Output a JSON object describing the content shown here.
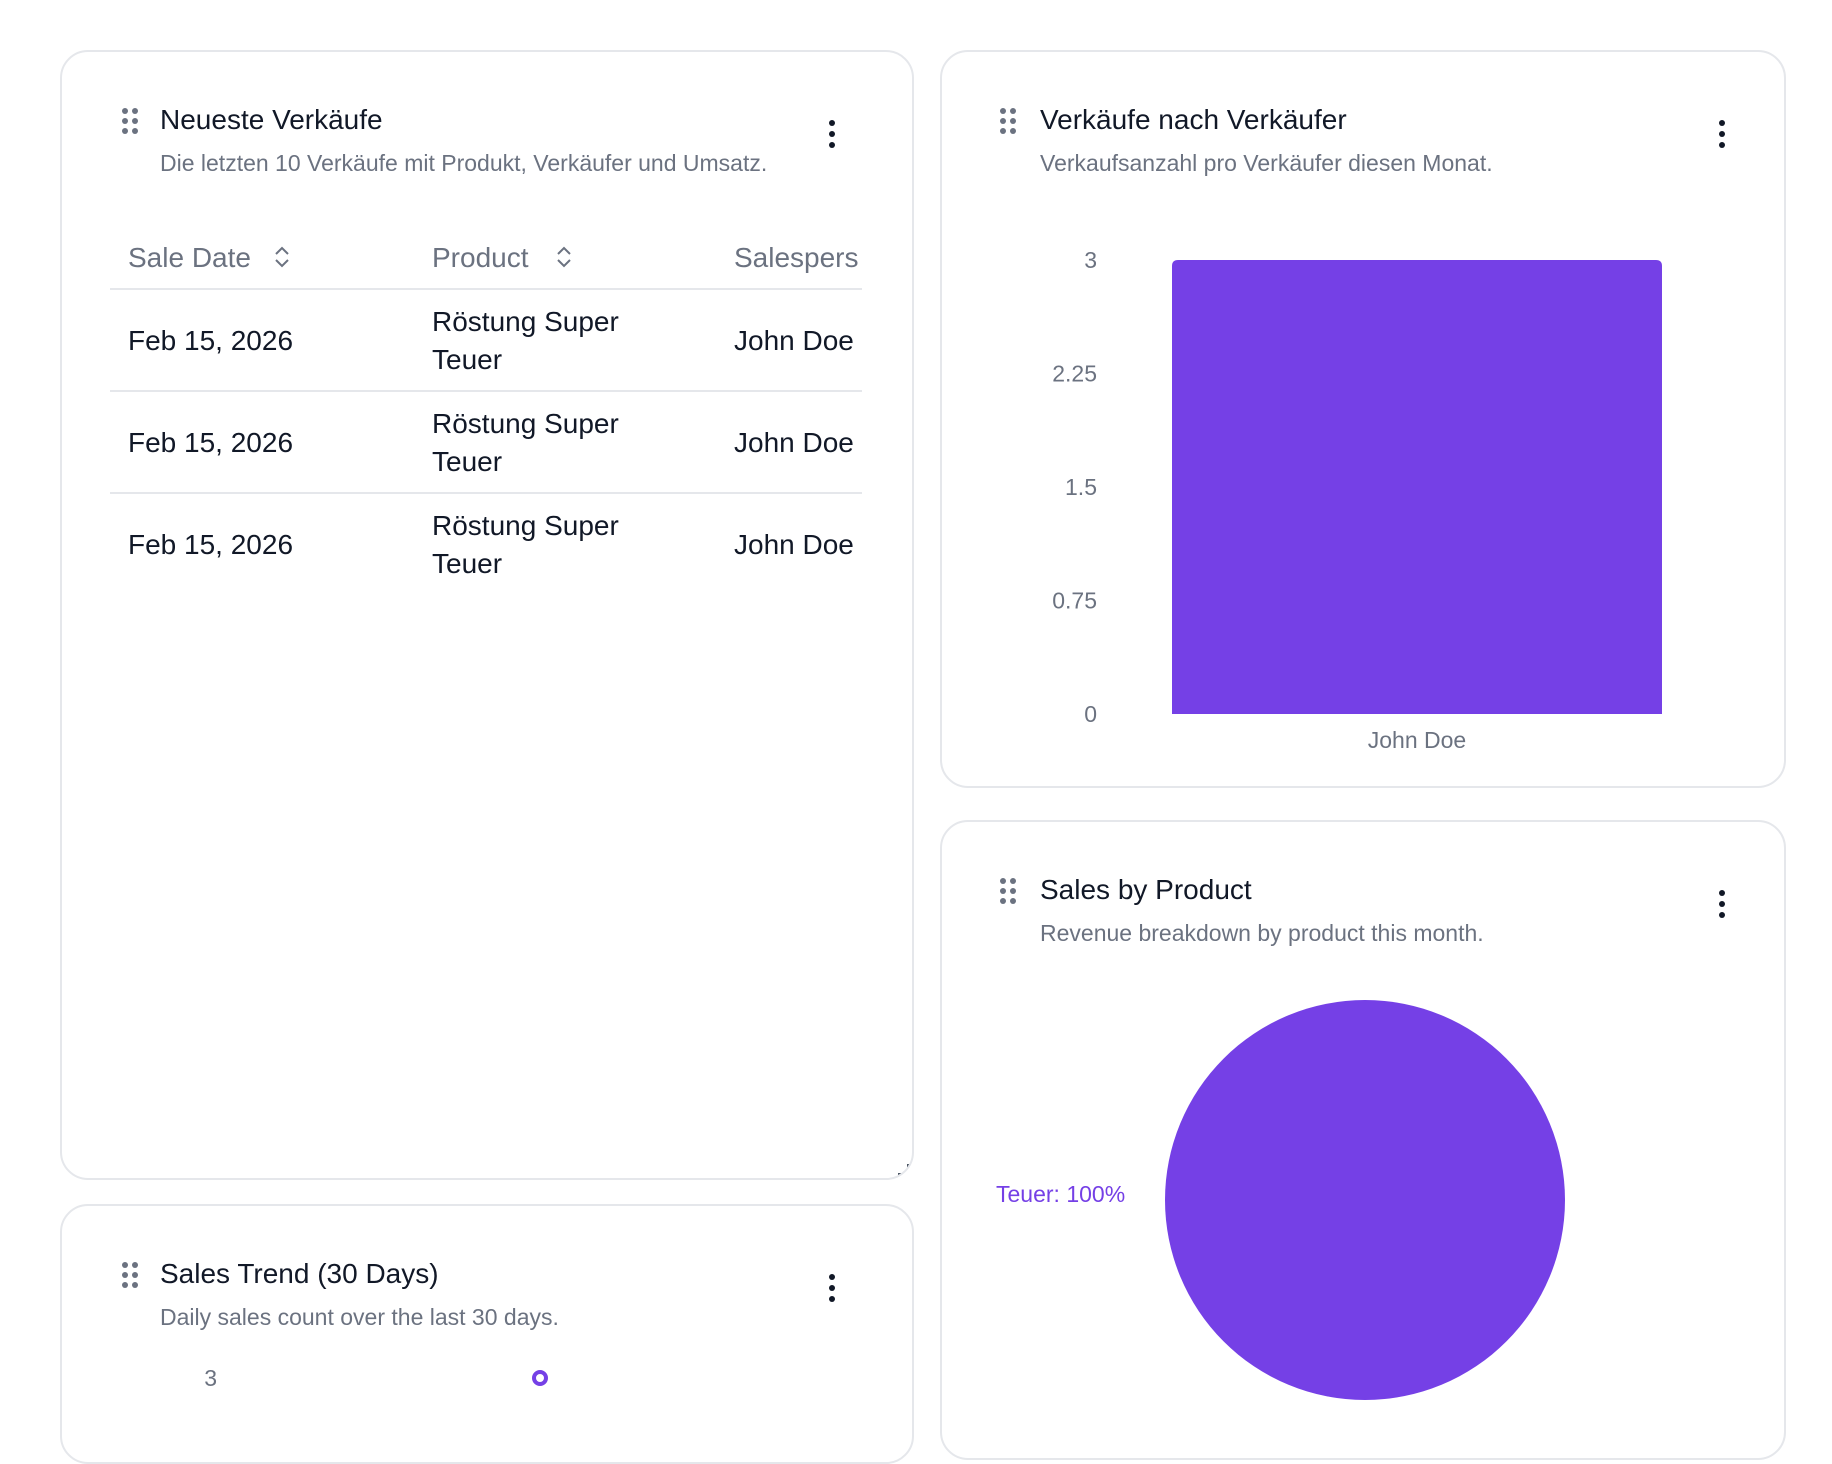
{
  "cards": {
    "recent_sales": {
      "title": "Neueste Verkäufe",
      "subtitle": "Die letzten 10 Verkäufe mit Produkt, Verkäufer und Umsatz.",
      "columns": [
        "Sale Date",
        "Product",
        "Salespers"
      ],
      "rows": [
        {
          "date": "Feb 15, 2026",
          "product": "Röstung Super Teuer",
          "salesperson": "John Doe"
        },
        {
          "date": "Feb 15, 2026",
          "product": "Röstung Super Teuer",
          "salesperson": "John Doe"
        },
        {
          "date": "Feb 15, 2026",
          "product": "Röstung Super Teuer",
          "salesperson": "John Doe"
        }
      ]
    },
    "sales_by_seller": {
      "title": "Verkäufe nach Verkäufer",
      "subtitle": "Verkaufsanzahl pro Verkäufer diesen Monat."
    },
    "sales_by_product": {
      "title": "Sales by Product",
      "subtitle": "Revenue breakdown by product this month."
    },
    "sales_trend": {
      "title": "Sales Trend (30 Days)",
      "subtitle": "Daily sales count over the last 30 days."
    }
  },
  "colors": {
    "accent": "#7540e6",
    "muted_text": "#6b7280",
    "border": "#e5e7eb"
  },
  "chart_data": [
    {
      "type": "bar",
      "categories": [
        "John Doe"
      ],
      "values": [
        3
      ],
      "ylim": [
        0,
        3
      ],
      "yticks": [
        "3",
        "2.25",
        "1.5",
        "0.75",
        "0"
      ],
      "grid": false
    },
    {
      "type": "pie",
      "slices": [
        {
          "label": "Teuer: 100%",
          "value": 100
        }
      ]
    },
    {
      "type": "line",
      "yticks": [
        "3"
      ],
      "series": [
        {
          "values": [
            3
          ]
        }
      ]
    }
  ]
}
